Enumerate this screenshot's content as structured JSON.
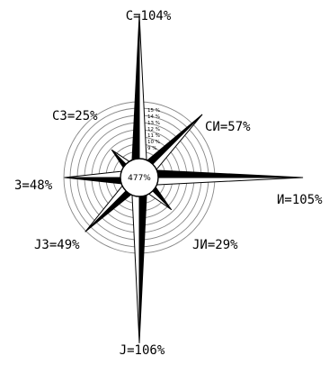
{
  "diagram": {
    "center_label": "477%",
    "ring_labels": [
      "15 %",
      "14 %",
      "13 %",
      "12 %",
      "11 %",
      "10 %",
      "9 %"
    ],
    "directions": [
      {
        "key": "n",
        "label": "С=104%",
        "value": 104
      },
      {
        "key": "ne",
        "label": "СИ=57%",
        "value": 57
      },
      {
        "key": "e",
        "label": "И=105%",
        "value": 105
      },
      {
        "key": "se",
        "label": "JИ=29%",
        "value": 29
      },
      {
        "key": "s",
        "label": "J=106%",
        "value": 106
      },
      {
        "key": "sw",
        "label": "JЗ=49%",
        "value": 49
      },
      {
        "key": "w",
        "label": "З=48%",
        "value": 48
      },
      {
        "key": "nw",
        "label": "СЗ=25%",
        "value": 25
      }
    ],
    "colors": {
      "petal_dark": "#000000",
      "petal_light": "#ffffff",
      "rings": "#888888"
    }
  }
}
